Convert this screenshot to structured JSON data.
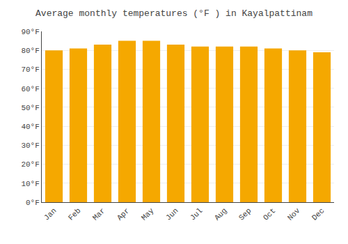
{
  "chart_data": {
    "type": "bar",
    "title": "Average monthly temperatures (°F ) in Kayalpattinam",
    "categories": [
      "Jan",
      "Feb",
      "Mar",
      "Apr",
      "May",
      "Jun",
      "Jul",
      "Aug",
      "Sep",
      "Oct",
      "Nov",
      "Dec"
    ],
    "values": [
      80,
      81,
      83,
      85,
      85,
      83,
      82,
      82,
      82,
      81,
      80,
      79
    ],
    "color": "#F5A800",
    "ylim": [
      0,
      90
    ],
    "yticks": [
      {
        "value": 0,
        "label": "0°F"
      },
      {
        "value": 10,
        "label": "10°F"
      },
      {
        "value": 20,
        "label": "20°F"
      },
      {
        "value": 30,
        "label": "30°F"
      },
      {
        "value": 40,
        "label": "40°F"
      },
      {
        "value": 50,
        "label": "50°F"
      },
      {
        "value": 60,
        "label": "60°F"
      },
      {
        "value": 70,
        "label": "70°F"
      },
      {
        "value": 80,
        "label": "80°F"
      },
      {
        "value": 90,
        "label": "90°F"
      }
    ],
    "grid": true
  }
}
